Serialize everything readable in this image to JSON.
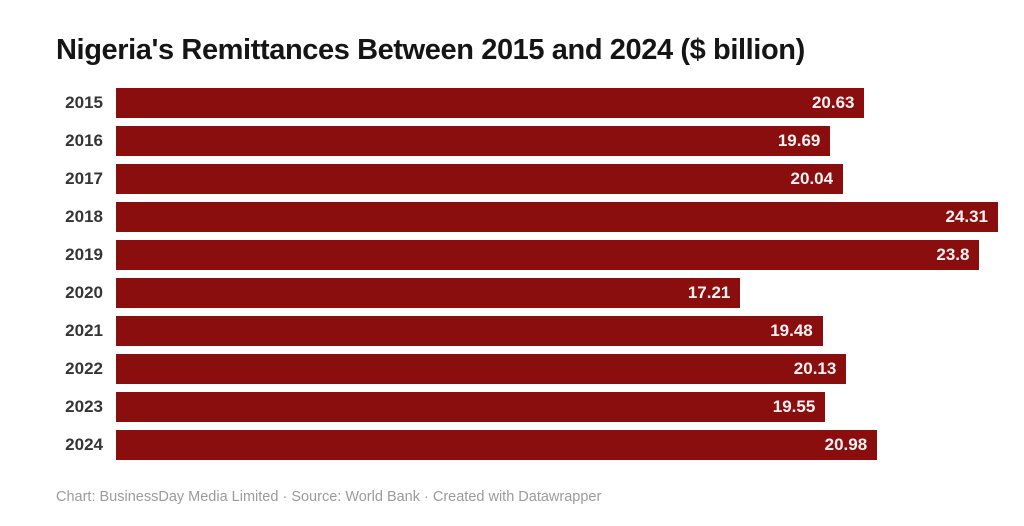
{
  "chart_data": {
    "type": "bar",
    "orientation": "horizontal",
    "title": "Nigeria's Remittances Between 2015 and 2024 ($ billion)",
    "categories": [
      "2015",
      "2016",
      "2017",
      "2018",
      "2019",
      "2020",
      "2021",
      "2022",
      "2023",
      "2024"
    ],
    "values": [
      20.63,
      19.69,
      20.04,
      24.31,
      23.8,
      17.21,
      19.48,
      20.13,
      19.55,
      20.98
    ],
    "value_labels": [
      "20.63",
      "19.69",
      "20.04",
      "24.31",
      "23.8",
      "17.21",
      "19.48",
      "20.13",
      "19.55",
      "20.98"
    ],
    "xlabel": "",
    "ylabel": "",
    "xlim": [
      0,
      24.31
    ],
    "grid": false,
    "legend": "none",
    "bar_color": "#8B0E0E",
    "category_label_color": "#353535",
    "value_label_color": "#FFFFFF",
    "title_color": "#151515"
  },
  "footer": {
    "text": "Chart: BusinessDay Media Limited · Source: World Bank · Created with Datawrapper"
  }
}
